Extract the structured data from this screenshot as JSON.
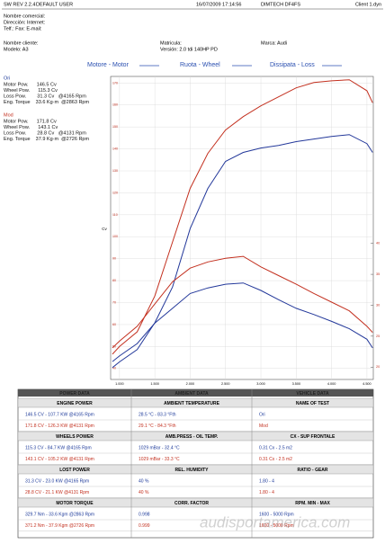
{
  "header": {
    "software": "SW REV 2.2.4",
    "user": "DEFAULT USER",
    "date": "16/07/2009 17:14:56",
    "device": "DIMTECH DF4FS",
    "file": "Client 1.dyn"
  },
  "company": [
    "Nombre comercial:",
    "Dirección:  Internet:",
    "Telf.:  Fax:  E-mail:"
  ],
  "client": {
    "name": "Nombre cliente:",
    "model": "Modelo: A3",
    "plate": "Matricula:",
    "version": "Versión: 2.0 tdi 140HP PD",
    "brand": "Marca: Audi"
  },
  "summary": [
    {
      "label": "Ori",
      "color": "#1d3a9a",
      "lines": [
        "Motor Pow.      146.5 Cv",
        "Wheel Pow.      115.3 Cv",
        "Loss Pow.        31.3 Cv   @4165 Rpm",
        "Eng. Torque    33.6 Kg·m  @2863 Rpm"
      ]
    },
    {
      "label": "Mod",
      "color": "#c3301f",
      "lines": [
        "Motor Pow.      171.8 Cv",
        "Wheel Pow.      143.1 Cv",
        "Loss Pow.        28.8 Cv   @4131 Rpm",
        "Eng. Torque    37.9 Kg·m  @2726 Rpm"
      ]
    }
  ],
  "chart_data": {
    "type": "line",
    "legend": [
      "Motore - Motor",
      "Ruota - Wheel",
      "Dissipata - Loss"
    ],
    "legend_color": "#2a4fb0",
    "y_label": "Cv",
    "x": [
      900,
      1000,
      1250,
      1500,
      1750,
      2000,
      2250,
      2500,
      2750,
      3000,
      3250,
      3500,
      3750,
      4000,
      4250,
      4500,
      4580
    ],
    "xlim": [
      875,
      4590
    ],
    "xticks": [
      {
        "value": 1000,
        "label": "1.000"
      },
      {
        "value": 1500,
        "label": "1.500"
      },
      {
        "value": 2000,
        "label": "2.000"
      },
      {
        "value": 2500,
        "label": "2.500"
      },
      {
        "value": 3000,
        "label": "3.000"
      },
      {
        "value": 3500,
        "label": "3.500"
      },
      {
        "value": 4000,
        "label": "4.000"
      },
      {
        "value": 4500,
        "label": "4.500"
      }
    ],
    "ylim": [
      35,
      173
    ],
    "yticks": [
      40,
      50,
      60,
      70,
      80,
      90,
      100,
      110,
      120,
      130,
      140,
      150,
      160,
      170
    ],
    "y2lim": [
      18,
      67
    ],
    "y2ticks": [
      20,
      25,
      30,
      35,
      40
    ],
    "grid": true,
    "series": [
      {
        "color": "#c3301f",
        "values": [
          46.5,
          50,
          56.7,
          73,
          97.6,
          122,
          138,
          148.6,
          154.7,
          159.6,
          163.7,
          167.8,
          170.2,
          171.0,
          171.5,
          166.5,
          161
        ]
      },
      {
        "color": "#23389a",
        "values": [
          40.4,
          43,
          48.6,
          60.8,
          77.1,
          103.7,
          122,
          134.3,
          138.4,
          140.4,
          141.6,
          143.3,
          144.5,
          145.7,
          146.5,
          142.4,
          138.4
        ]
      },
      {
        "color": "#c3301f",
        "axis": "y2",
        "values": [
          23.1,
          24.2,
          26.6,
          30.2,
          33.8,
          36.0,
          37.0,
          37.6,
          37.9,
          36.2,
          34.8,
          33.4,
          31.9,
          30.5,
          29.1,
          26.6,
          25.6
        ]
      },
      {
        "color": "#23389a",
        "axis": "y2",
        "values": [
          20.9,
          21.8,
          23.8,
          27.1,
          29.5,
          31.9,
          32.8,
          33.4,
          33.6,
          32.4,
          30.9,
          29.5,
          28.5,
          27.4,
          26.2,
          24.5,
          23.1
        ]
      }
    ]
  },
  "table": {
    "top": [
      "POWER DATA",
      "AMBIENT DATA",
      "VEHICLE DATA"
    ],
    "sections": [
      {
        "headers": [
          "ENGINE POWER",
          "AMBIENT TEMPERATURE",
          "NAME OF TEST"
        ],
        "rows": [
          [
            "146.5 CV - 107.7 KW @4165 Rpm",
            "28.5 °C - 83.3 °Fth",
            "Ori"
          ],
          [
            "171.8 CV - 126.3 KW @4131 Rpm",
            "29.1 °C - 84.3 °Fth",
            "Mod"
          ]
        ]
      },
      {
        "headers": [
          "WHEELS POWER",
          "AMB.PRESS - OIL TEMP.",
          "CX - SUP FRONTALE"
        ],
        "rows": [
          [
            "115.3 CV - 84.7 KW @4165 Rpm",
            "1029 mBar - 32.4 °C",
            "0.31 Cx - 2.5 m2"
          ],
          [
            "143.1 CV - 105.2 KW @4131 Rpm",
            "1029 mBar - 33.3 °C",
            "0.31 Cx - 2.5 m2"
          ]
        ]
      },
      {
        "headers": [
          "LOST POWER",
          "REL. HUMIDITY",
          "RATIO - GEAR"
        ],
        "rows": [
          [
            "31.3 CV - 23.0 KW @4165 Rpm",
            "40 %",
            "1.80 - 4"
          ],
          [
            "28.8 CV - 21.1 KW @4131 Rpm",
            "40 %",
            "1.80 - 4"
          ]
        ]
      },
      {
        "headers": [
          "MOTOR TORQUE",
          "CORR. FACTOR",
          "RPM. MIN - MAX"
        ],
        "rows": [
          [
            "329.7 Nm - 33.6 Kgm @2863 Rpm",
            "0.998",
            "1600 - 5000 Rpm"
          ],
          [
            "371.2 Nm - 37.9 Kgm @2726 Rpm",
            "0.999",
            "1600 - 5000 Rpm"
          ]
        ]
      }
    ],
    "row_colors": [
      "#1d3a9a",
      "#c3301f"
    ]
  },
  "watermark": "audisportamerica.com"
}
